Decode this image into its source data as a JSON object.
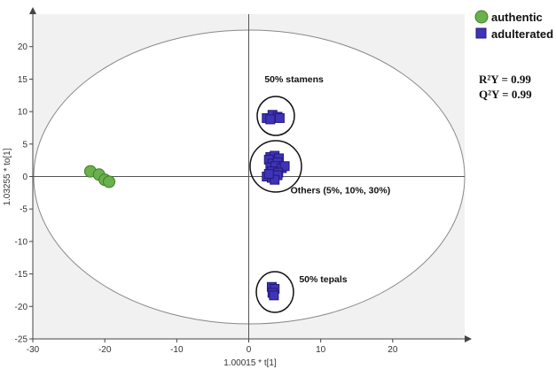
{
  "chart_data": {
    "type": "scatter",
    "xlabel": "1.00015 * t[1]",
    "ylabel": "1.03255 * to[1]",
    "xlim": [
      -30,
      30
    ],
    "ylim": [
      -25,
      25
    ],
    "xticks": [
      -30,
      -20,
      -10,
      0,
      10,
      20
    ],
    "yticks": [
      -25,
      -20,
      -15,
      -10,
      -5,
      0,
      5,
      10,
      15,
      20
    ],
    "grid": false,
    "legend_position": "top-right",
    "series": [
      {
        "name": "authentic",
        "marker": "circle",
        "color": "#6ab04c",
        "points": [
          [
            -22.0,
            0.8
          ],
          [
            -20.8,
            0.3
          ],
          [
            -20.0,
            -0.5
          ],
          [
            -19.4,
            -0.8
          ]
        ]
      },
      {
        "name": "adulterated",
        "marker": "square",
        "color": "#3f33b8",
        "points": [
          [
            2.5,
            9.0
          ],
          [
            3.3,
            9.5
          ],
          [
            4.0,
            9.2
          ],
          [
            3.0,
            8.8
          ],
          [
            4.3,
            9.0
          ],
          [
            3.0,
            3.0
          ],
          [
            3.6,
            3.2
          ],
          [
            2.8,
            2.6
          ],
          [
            4.2,
            2.8
          ],
          [
            3.3,
            2.0
          ],
          [
            4.0,
            2.2
          ],
          [
            3.0,
            1.4
          ],
          [
            3.7,
            1.6
          ],
          [
            4.6,
            1.3
          ],
          [
            5.0,
            1.6
          ],
          [
            3.2,
            0.8
          ],
          [
            4.1,
            0.6
          ],
          [
            2.5,
            0.0
          ],
          [
            3.2,
            -0.2
          ],
          [
            4.0,
            0.2
          ],
          [
            3.6,
            -0.5
          ],
          [
            2.8,
            0.4
          ],
          [
            3.2,
            -17.0
          ],
          [
            3.6,
            -17.3
          ],
          [
            3.3,
            -17.9
          ],
          [
            3.5,
            -18.3
          ]
        ]
      }
    ],
    "annotations": [
      {
        "text": "50% stamens",
        "x": 2.2,
        "y": 14.5
      },
      {
        "text": "Others (5%, 10%, 30%)",
        "x": 5.8,
        "y": -2.6
      },
      {
        "text": "50% tepals",
        "x": 7.0,
        "y": -16.3
      }
    ],
    "stats": {
      "r2y": "R²Y = 0.99",
      "q2y": "Q²Y = 0.99"
    }
  }
}
